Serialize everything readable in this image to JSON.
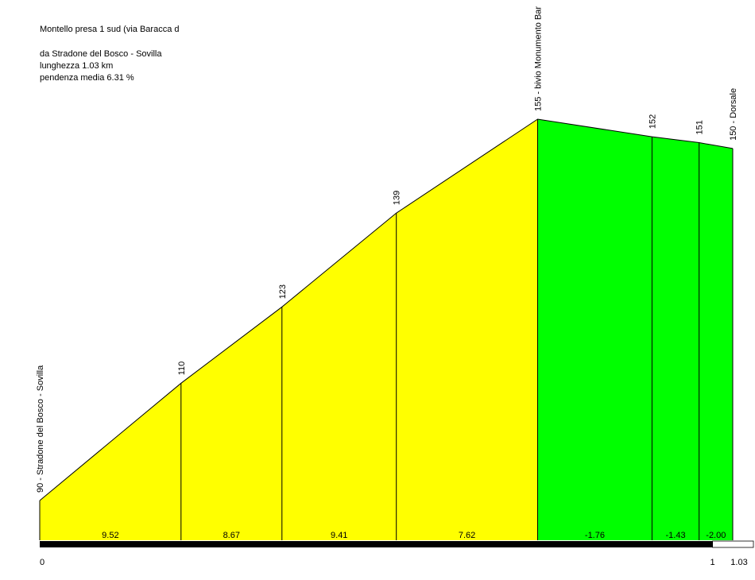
{
  "chart_data": {
    "type": "area",
    "title": "Montello presa 1 sud (via Baracca d",
    "info": [
      "da Stradone del Bosco - Sovilla",
      "lunghezza 1.03 km",
      "pendenza media 6.31 %"
    ],
    "x": [
      0,
      0.21,
      0.36,
      0.53,
      0.74,
      0.91,
      0.98,
      1.03
    ],
    "values": [
      90,
      110,
      123,
      139,
      155,
      152,
      151,
      150
    ],
    "value_labels": [
      "90 - Stradone del Bosco - Sovilla",
      "110",
      "123",
      "139",
      "155 - bivio Monumento Bar",
      "152",
      "151",
      "150 - Dorsale"
    ],
    "gradients": [
      9.52,
      8.67,
      9.41,
      7.62,
      -1.76,
      -1.43,
      -2.0
    ],
    "gradient_labels": [
      "9.52",
      "8.67",
      "9.41",
      "7.62",
      "-1.76",
      "-1.43",
      "-2.00"
    ],
    "climb_color": "#ffff00",
    "descent_color": "#00ff00",
    "xlim": [
      0,
      1.03
    ],
    "xticks": [
      0,
      1,
      1.03
    ]
  }
}
